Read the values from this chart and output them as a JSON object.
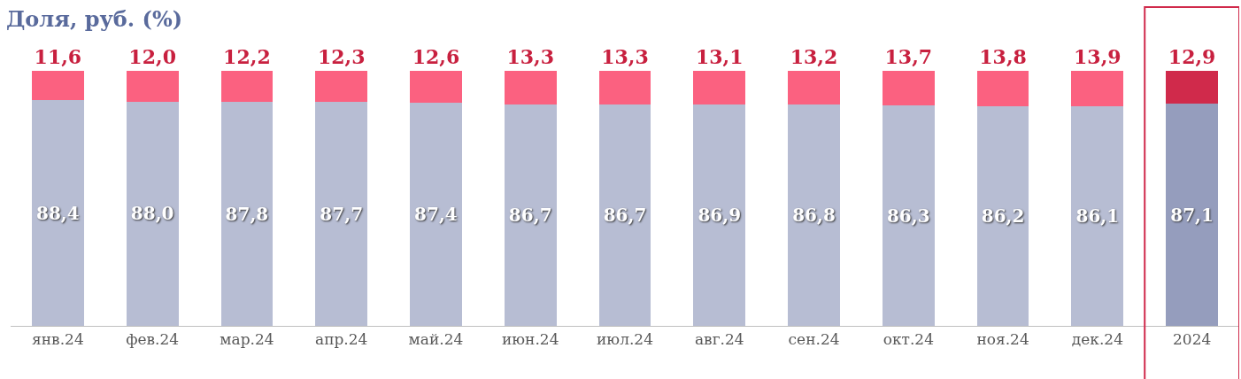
{
  "chart_data": {
    "type": "bar",
    "title": "Доля, руб. (%)",
    "stacked": true,
    "categories": [
      "янв.24",
      "фев.24",
      "мар.24",
      "апр.24",
      "май.24",
      "июн.24",
      "июл.24",
      "авг.24",
      "сен.24",
      "окт.24",
      "ноя.24",
      "дек.24",
      "2024"
    ],
    "series": [
      {
        "colors": [
          "#b7bdd3",
          "#b7bdd3",
          "#b7bdd3",
          "#b7bdd3",
          "#b7bdd3",
          "#b7bdd3",
          "#b7bdd3",
          "#b7bdd3",
          "#b7bdd3",
          "#b7bdd3",
          "#b7bdd3",
          "#b7bdd3",
          "#959dbd"
        ],
        "values": [
          88.4,
          88.0,
          87.8,
          87.7,
          87.4,
          86.7,
          86.7,
          86.9,
          86.8,
          86.3,
          86.2,
          86.1,
          87.1
        ],
        "value_labels": [
          "88,4",
          "88,0",
          "87,8",
          "87,7",
          "87,4",
          "86,7",
          "86,7",
          "86,9",
          "86,8",
          "86,3",
          "86,2",
          "86,1",
          "87,1"
        ]
      },
      {
        "colors": [
          "#fb6180",
          "#fb6180",
          "#fb6180",
          "#fb6180",
          "#fb6180",
          "#fb6180",
          "#fb6180",
          "#fb6180",
          "#fb6180",
          "#fb6180",
          "#fb6180",
          "#fb6180",
          "#d02a4b"
        ],
        "values": [
          11.6,
          12.0,
          12.2,
          12.3,
          12.6,
          13.3,
          13.3,
          13.1,
          13.2,
          13.7,
          13.8,
          13.9,
          12.9
        ],
        "value_labels": [
          "11,6",
          "12,0",
          "12,2",
          "12,3",
          "12,6",
          "13,3",
          "13,3",
          "13,1",
          "13,2",
          "13,7",
          "13,8",
          "13,9",
          "12,9"
        ]
      }
    ]
  }
}
